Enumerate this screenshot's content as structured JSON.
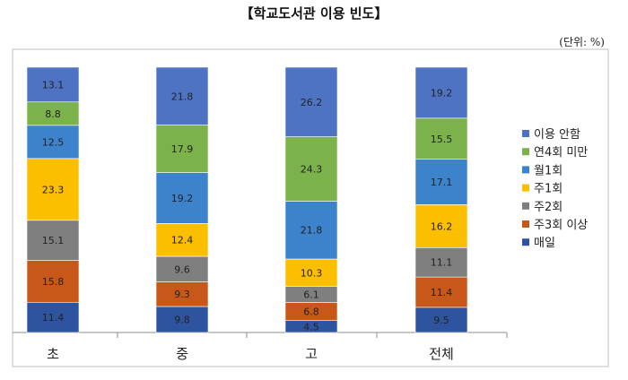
{
  "title": "【학교도서관 이용 빈도】",
  "unit_note": "(단위: %)",
  "chart_data": {
    "type": "bar",
    "stacked": true,
    "categories": [
      "초",
      "중",
      "고",
      "전체"
    ],
    "series": [
      {
        "name": "매일",
        "color": "#2e54a0",
        "values": [
          11.4,
          9.8,
          4.5,
          9.5
        ]
      },
      {
        "name": "주3회 이상",
        "color": "#c8581a",
        "values": [
          15.8,
          9.3,
          6.8,
          11.4
        ]
      },
      {
        "name": "주2회",
        "color": "#7f7f7f",
        "values": [
          15.1,
          9.6,
          6.1,
          11.1
        ]
      },
      {
        "name": "주1회",
        "color": "#fbbf00",
        "values": [
          23.3,
          12.4,
          10.3,
          16.2
        ]
      },
      {
        "name": "월1회",
        "color": "#3c83cc",
        "values": [
          12.5,
          19.2,
          21.8,
          17.1
        ]
      },
      {
        "name": "연4회 미만",
        "color": "#7cb24b",
        "values": [
          8.8,
          17.9,
          24.3,
          15.5
        ]
      },
      {
        "name": "이용 안함",
        "color": "#4f73c3",
        "values": [
          13.1,
          21.8,
          26.2,
          19.2
        ]
      }
    ],
    "legend_position": "right",
    "grid": false
  }
}
